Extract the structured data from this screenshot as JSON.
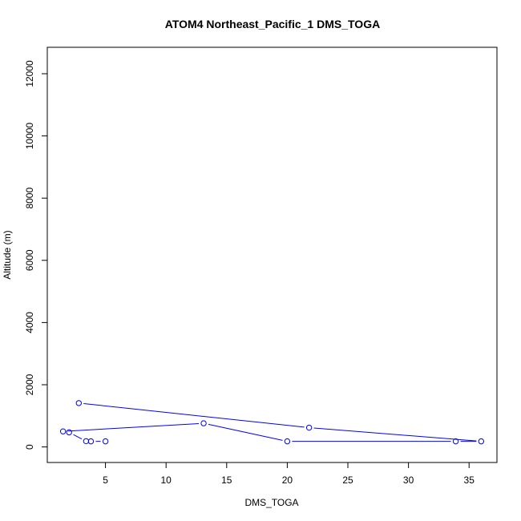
{
  "chart_data": {
    "type": "line",
    "title": "ATOM4 Northeast_Pacific_1 DMS_TOGA",
    "xlabel": "DMS_TOGA",
    "ylabel": "Altitude (m)",
    "xlim": [
      0.2,
      37.3
    ],
    "ylim": [
      -500,
      12850
    ],
    "x_ticks": [
      5,
      10,
      15,
      20,
      25,
      30,
      35
    ],
    "y_ticks": [
      0,
      2000,
      4000,
      6000,
      8000,
      10000,
      12000
    ],
    "grid": false,
    "series": [
      {
        "color": "#0000ff",
        "marker": "open-circle",
        "points": [
          {
            "x": 5.0,
            "y": 180
          },
          {
            "x": 3.8,
            "y": 180
          },
          {
            "x": 3.4,
            "y": 185
          },
          {
            "x": 2.0,
            "y": 470
          },
          {
            "x": 1.5,
            "y": 500
          },
          {
            "x": 13.1,
            "y": 760
          },
          {
            "x": 20.0,
            "y": 180
          },
          {
            "x": 33.9,
            "y": 180
          },
          {
            "x": 36.0,
            "y": 180
          },
          {
            "x": 21.8,
            "y": 620
          },
          {
            "x": 2.8,
            "y": 1410
          }
        ]
      }
    ]
  }
}
